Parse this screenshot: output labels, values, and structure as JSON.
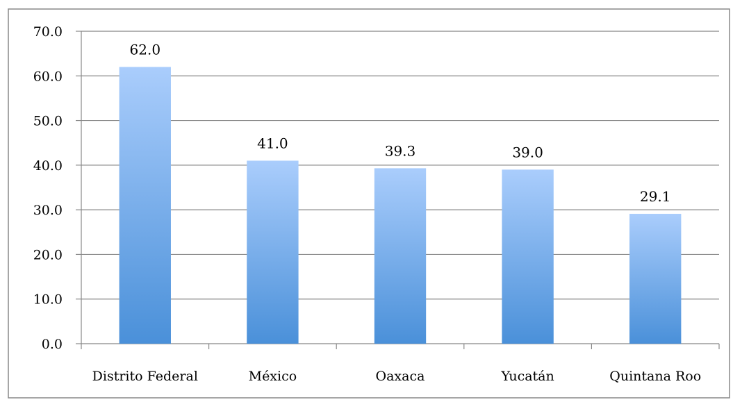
{
  "chart_data": {
    "type": "bar",
    "title": "",
    "xlabel": "",
    "ylabel": "",
    "categories": [
      "Distrito Federal",
      "México",
      "Oaxaca",
      "Yucatán",
      "Quintana Roo"
    ],
    "values": [
      62.0,
      41.0,
      39.3,
      39.0,
      29.1
    ],
    "data_labels": [
      "62.0",
      "41.0",
      "39.3",
      "39.0",
      "29.1"
    ],
    "ylim": [
      0,
      70
    ],
    "y_ticks": [
      0,
      10,
      20,
      30,
      40,
      50,
      60,
      70
    ],
    "y_tick_labels": [
      "0.0",
      "10.0",
      "20.0",
      "30.0",
      "40.0",
      "50.0",
      "60.0",
      "70.0"
    ],
    "grid": true,
    "legend": "none",
    "colors": {
      "bar_top": "#aacdfc",
      "bar_bottom": "#4a90d9",
      "grid": "#888888",
      "border": "#888888"
    }
  }
}
